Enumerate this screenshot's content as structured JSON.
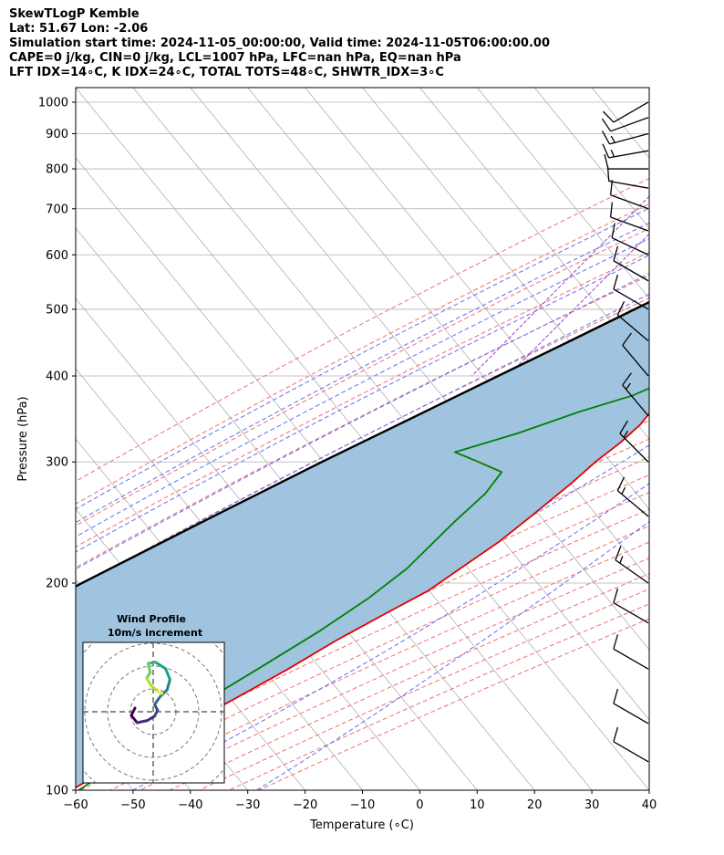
{
  "header": {
    "line1": "SkewTLogP Kemble",
    "line2": "Lat: 51.67   Lon: -2.06",
    "line3": "Simulation start time: 2024-11-05_00:00:00, Valid time: 2024-11-05T06:00:00.00",
    "line4": "CAPE=0 j/kg, CIN=0 j/kg, LCL=1007 hPa, LFC=nan hPa, EQ=nan hPa",
    "line5": "LFT IDX=14∘C, K IDX=24∘C, TOTAL TOTS=48∘C, SHWTR_IDX=3∘C"
  },
  "chart_data": {
    "type": "line",
    "xlabel": "Temperature (∘C)",
    "ylabel": "Pressure (hPa)",
    "xlim": [
      -60,
      40
    ],
    "ylim": [
      1050,
      100
    ],
    "y_scale": "log",
    "skew": true,
    "x_ticks": [
      -60,
      -50,
      -40,
      -30,
      -20,
      -10,
      0,
      10,
      20,
      30,
      40
    ],
    "y_ticks": [
      1000,
      900,
      800,
      700,
      600,
      500,
      400,
      300,
      200,
      100
    ],
    "grid": true,
    "series": [
      {
        "role": "temperature",
        "color": "#e00000",
        "points": [
          [
            1000,
            8.5
          ],
          [
            980,
            10.5
          ],
          [
            950,
            12.0
          ],
          [
            920,
            13.2
          ],
          [
            890,
            14.1
          ],
          [
            850,
            14.0
          ],
          [
            800,
            12.3
          ],
          [
            760,
            10.3
          ],
          [
            720,
            8.0
          ],
          [
            675,
            5.4
          ],
          [
            640,
            3.7
          ],
          [
            600,
            1.9
          ],
          [
            560,
            0.2
          ],
          [
            520,
            -1.3
          ],
          [
            480,
            -3.4
          ],
          [
            440,
            -6.4
          ],
          [
            400,
            -9.8
          ],
          [
            360,
            -13.6
          ],
          [
            340,
            -13.6
          ],
          [
            320,
            -14.5
          ],
          [
            300,
            -16.1
          ],
          [
            280,
            -17.2
          ],
          [
            250,
            -19.6
          ],
          [
            230,
            -21.5
          ],
          [
            210,
            -24.5
          ],
          [
            195,
            -26.9
          ],
          [
            180,
            -31.3
          ],
          [
            165,
            -35.9
          ],
          [
            150,
            -40.2
          ],
          [
            135,
            -45.6
          ],
          [
            120,
            -51.8
          ],
          [
            110,
            -56.3
          ],
          [
            100,
            -60.8
          ]
        ]
      },
      {
        "role": "dewpoint",
        "color": "#008000",
        "points": [
          [
            1000,
            7.0
          ],
          [
            960,
            6.6
          ],
          [
            920,
            9.5
          ],
          [
            900,
            11.1
          ],
          [
            870,
            10.1
          ],
          [
            830,
            7.5
          ],
          [
            790,
            4.1
          ],
          [
            750,
            0.5
          ],
          [
            715,
            -2.1
          ],
          [
            690,
            0.9
          ],
          [
            660,
            2.5
          ],
          [
            630,
            3.3
          ],
          [
            560,
            0.0
          ],
          [
            500,
            -3.7
          ],
          [
            460,
            -7.7
          ],
          [
            420,
            -13.2
          ],
          [
            395,
            -15.1
          ],
          [
            375,
            -19.0
          ],
          [
            355,
            -26.0
          ],
          [
            330,
            -33.8
          ],
          [
            310,
            -42.0
          ],
          [
            300,
            -36.5
          ],
          [
            290,
            -31.0
          ],
          [
            270,
            -30.8
          ],
          [
            245,
            -32.2
          ],
          [
            210,
            -33.8
          ],
          [
            190,
            -36.3
          ],
          [
            170,
            -40.2
          ],
          [
            150,
            -45.5
          ],
          [
            140,
            -48.5
          ],
          [
            120,
            -52.5
          ],
          [
            100,
            -59.5
          ]
        ]
      },
      {
        "role": "parcel",
        "color": "#000000",
        "points": [
          [
            1000,
            7.0
          ],
          [
            950,
            4.5
          ],
          [
            900,
            1.8
          ],
          [
            850,
            -1.0
          ],
          [
            800,
            -4.1
          ],
          [
            750,
            -7.4
          ],
          [
            700,
            -11.1
          ],
          [
            650,
            -15.2
          ],
          [
            600,
            -19.8
          ],
          [
            550,
            -25.0
          ],
          [
            500,
            -31.0
          ],
          [
            450,
            -37.7
          ],
          [
            400,
            -45.3
          ],
          [
            350,
            -53.9
          ],
          [
            300,
            -63.8
          ],
          [
            250,
            -75.0
          ],
          [
            200,
            -88.4
          ],
          [
            150,
            -104.0
          ],
          [
            100,
            -124.0
          ]
        ]
      }
    ],
    "shaded_region": {
      "between": [
        "temperature",
        "parcel"
      ],
      "color": "#a0c4df"
    },
    "background_lines": {
      "isotherms_color": "#b0b0b0",
      "dry_adiabats_color": "#f07070",
      "moist_adiabats_color": "#6070f0",
      "mixing_ratio_color": "#9b40c8"
    },
    "wind_barbs": [
      {
        "p": 1000,
        "speed_kt": 8,
        "dir": 240
      },
      {
        "p": 950,
        "speed_kt": 12,
        "dir": 250
      },
      {
        "p": 900,
        "speed_kt": 15,
        "dir": 255
      },
      {
        "p": 850,
        "speed_kt": 15,
        "dir": 260
      },
      {
        "p": 800,
        "speed_kt": 12,
        "dir": 270
      },
      {
        "p": 750,
        "speed_kt": 10,
        "dir": 280
      },
      {
        "p": 700,
        "speed_kt": 10,
        "dir": 290
      },
      {
        "p": 650,
        "speed_kt": 10,
        "dir": 290
      },
      {
        "p": 600,
        "speed_kt": 10,
        "dir": 295
      },
      {
        "p": 550,
        "speed_kt": 10,
        "dir": 300
      },
      {
        "p": 500,
        "speed_kt": 12,
        "dir": 300
      },
      {
        "p": 450,
        "speed_kt": 10,
        "dir": 310
      },
      {
        "p": 400,
        "speed_kt": 10,
        "dir": 320
      },
      {
        "p": 350,
        "speed_kt": 15,
        "dir": 320
      },
      {
        "p": 300,
        "speed_kt": 15,
        "dir": 315
      },
      {
        "p": 250,
        "speed_kt": 15,
        "dir": 310
      },
      {
        "p": 200,
        "speed_kt": 15,
        "dir": 305
      },
      {
        "p": 175,
        "speed_kt": 12,
        "dir": 300
      },
      {
        "p": 150,
        "speed_kt": 12,
        "dir": 300
      },
      {
        "p": 125,
        "speed_kt": 12,
        "dir": 300
      },
      {
        "p": 110,
        "speed_kt": 12,
        "dir": 300
      }
    ],
    "inset": {
      "title": "Wind Profile",
      "subtitle": "10m/s increment",
      "type": "hodograph",
      "hodograph": [
        [
          -2.5,
          0.5
        ],
        [
          -3.0,
          -0.5
        ],
        [
          -2.2,
          -1.5
        ],
        [
          -0.8,
          -1.2
        ],
        [
          0.2,
          -0.6
        ],
        [
          0.6,
          0.2
        ],
        [
          0.2,
          1.0
        ],
        [
          0.9,
          2.0
        ],
        [
          1.9,
          3.0
        ],
        [
          2.3,
          4.4
        ],
        [
          1.7,
          5.9
        ],
        [
          0.3,
          6.8
        ],
        [
          -0.7,
          6.6
        ],
        [
          -0.4,
          5.4
        ],
        [
          -0.9,
          4.6
        ],
        [
          -0.3,
          3.6
        ],
        [
          0.6,
          2.8
        ],
        [
          1.2,
          2.5
        ]
      ]
    }
  }
}
